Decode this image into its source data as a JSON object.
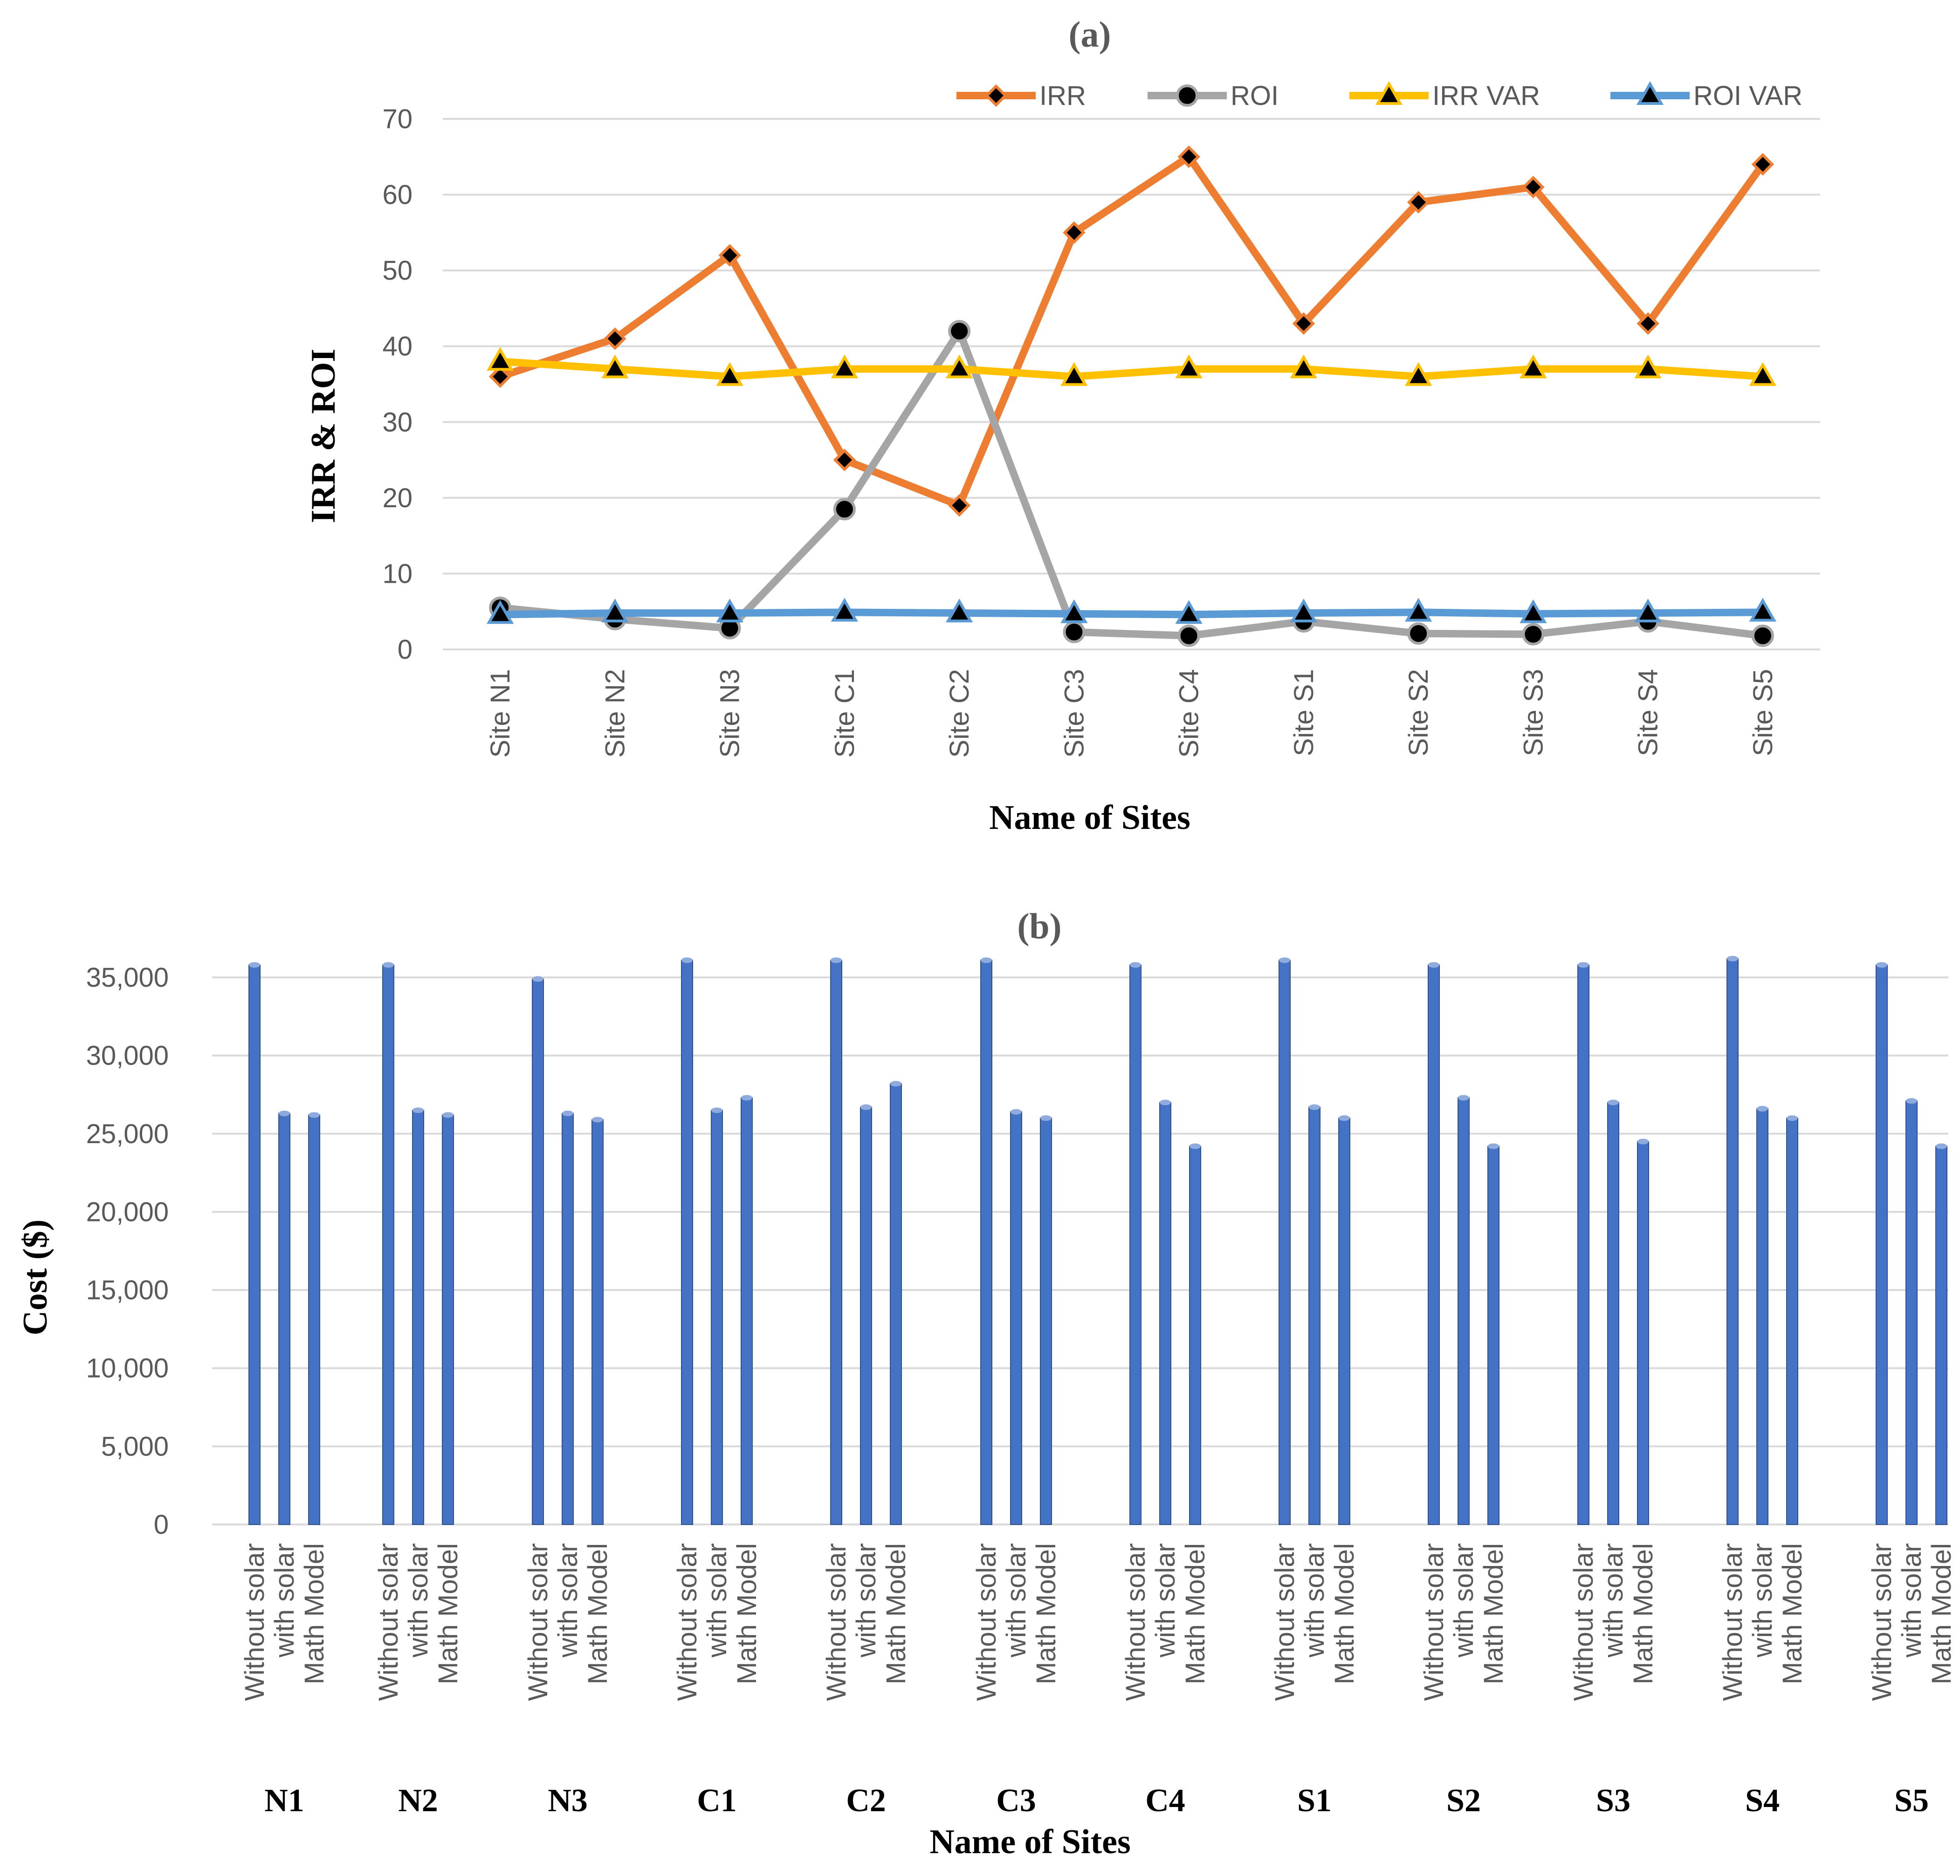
{
  "chart_data": [
    {
      "type": "line",
      "panel_label": "(a)",
      "title": "(a)",
      "xlabel": "Name of Sites",
      "ylabel": "IRR & ROI",
      "ylim": [
        0,
        70
      ],
      "yticks": [
        "0",
        "10",
        "20",
        "30",
        "40",
        "50",
        "60",
        "70"
      ],
      "grid": true,
      "legend_position": "top-right",
      "categories": [
        "Site N1",
        "Site N2",
        "Site N3",
        "Site C1",
        "Site C2",
        "Site C3",
        "Site C4",
        "Site S1",
        "Site S2",
        "Site S3",
        "Site S4",
        "Site S5"
      ],
      "series": [
        {
          "name": "IRR",
          "color": "#ed7d31",
          "marker": "diamond",
          "values": [
            36,
            41,
            52,
            25,
            19,
            55,
            65,
            43,
            59,
            61,
            43,
            64
          ]
        },
        {
          "name": "ROI",
          "color": "#a5a5a5",
          "marker": "circle",
          "values": [
            5.5,
            4,
            2.8,
            18.5,
            42,
            2.3,
            1.8,
            3.7,
            2.1,
            2.0,
            3.7,
            1.8
          ]
        },
        {
          "name": "IRR VAR",
          "color": "#ffc000",
          "marker": "triangle",
          "values": [
            38,
            37,
            36,
            37,
            37,
            36,
            37,
            37,
            36,
            37,
            37,
            36
          ]
        },
        {
          "name": "ROI VAR",
          "color": "#5b9bd5",
          "marker": "triangle",
          "values": [
            4.6,
            4.8,
            4.8,
            4.9,
            4.8,
            4.7,
            4.6,
            4.8,
            4.9,
            4.7,
            4.8,
            4.9
          ]
        }
      ]
    },
    {
      "type": "bar",
      "panel_label": "(b)",
      "title": "(b)",
      "xlabel": "Name of Sites",
      "ylabel": "Cost ($)",
      "ylim": [
        0,
        36000
      ],
      "yticks": [
        "0",
        "5,000",
        "10,000",
        "15,000",
        "20,000",
        "25,000",
        "30,000",
        "35,000"
      ],
      "grid": true,
      "bar_color": "#4472c4",
      "sub_categories": [
        "Without solar",
        "with solar",
        "Math Model"
      ],
      "groups": [
        "N1",
        "N2",
        "N3",
        "C1",
        "C2",
        "C3",
        "C4",
        "S1",
        "S2",
        "S3",
        "S4",
        "S5"
      ],
      "values": [
        [
          35800,
          26300,
          26200
        ],
        [
          35800,
          26500,
          26200
        ],
        [
          34900,
          26300,
          25900
        ],
        [
          36100,
          26500,
          27300
        ],
        [
          36100,
          26700,
          28200
        ],
        [
          36100,
          26400,
          26000
        ],
        [
          35800,
          27000,
          24200
        ],
        [
          36100,
          26700,
          26000
        ],
        [
          35800,
          27300,
          24200
        ],
        [
          35800,
          27000,
          24500
        ],
        [
          36200,
          26600,
          26000
        ],
        [
          35800,
          27100,
          24200
        ]
      ]
    }
  ]
}
